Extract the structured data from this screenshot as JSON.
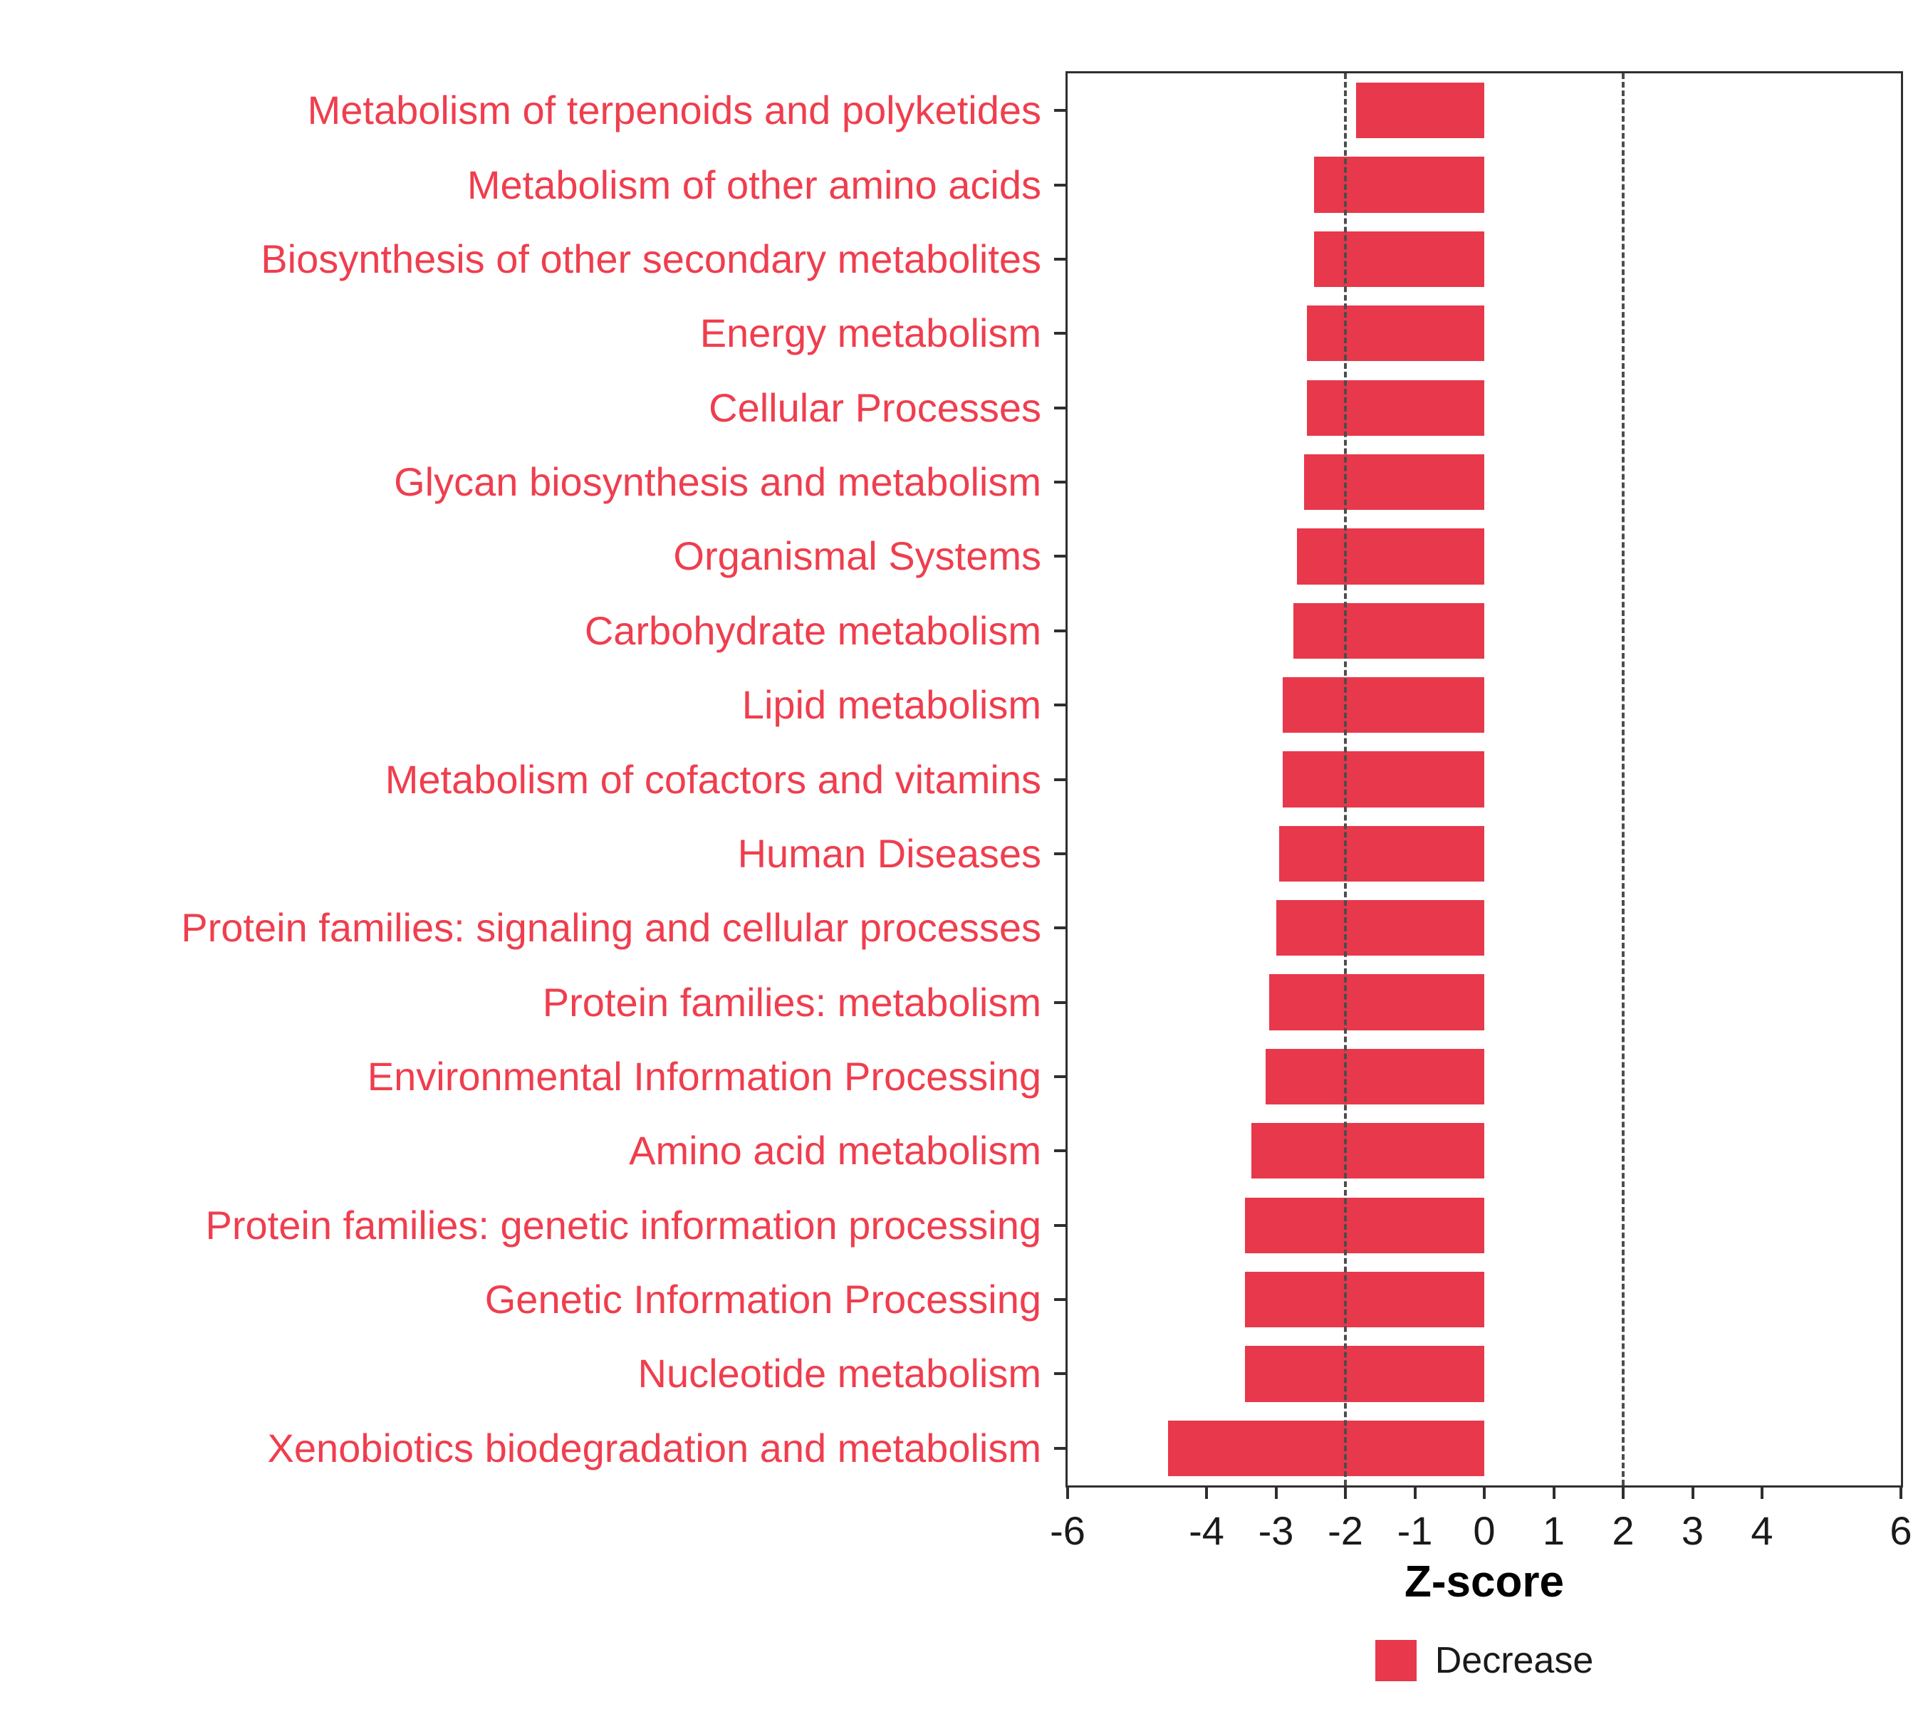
{
  "chart_data": {
    "type": "bar",
    "orientation": "horizontal",
    "title": "",
    "xlabel": "Z-score",
    "categories": [
      "Metabolism of terpenoids and polyketides",
      "Metabolism of other amino acids",
      "Biosynthesis of other secondary metabolites",
      "Energy metabolism",
      "Cellular Processes",
      "Glycan biosynthesis and metabolism",
      "Organismal Systems",
      "Carbohydrate metabolism",
      "Lipid metabolism",
      "Metabolism of cofactors and vitamins",
      "Human Diseases",
      "Protein families: signaling and cellular processes",
      "Protein families: metabolism",
      "Environmental Information Processing",
      "Amino acid metabolism",
      "Protein families: genetic information processing",
      "Genetic Information Processing",
      "Nucleotide metabolism",
      "Xenobiotics biodegradation and metabolism"
    ],
    "values": [
      -1.85,
      -2.45,
      -2.45,
      -2.55,
      -2.55,
      -2.6,
      -2.7,
      -2.75,
      -2.9,
      -2.9,
      -2.95,
      -3.0,
      -3.1,
      -3.15,
      -3.35,
      -3.45,
      -3.45,
      -3.45,
      -4.55
    ],
    "xlim": [
      -6,
      6
    ],
    "x_ticks": [
      {
        "value": -6,
        "label": "-6"
      },
      {
        "value": -4,
        "label": "-4"
      },
      {
        "value": -3,
        "label": "-3"
      },
      {
        "value": -2,
        "label": "-2"
      },
      {
        "value": -1,
        "label": "-1"
      },
      {
        "value": 0,
        "label": "0"
      },
      {
        "value": 1,
        "label": "1"
      },
      {
        "value": 2,
        "label": "2"
      },
      {
        "value": 3,
        "label": "3"
      },
      {
        "value": 4,
        "label": "4"
      },
      {
        "value": 6,
        "label": "6"
      }
    ],
    "reference_lines": [
      -2,
      2
    ],
    "grid": false,
    "bar_color": "#e8384b",
    "label_color": "#ef3e4e",
    "axis_text_color": "#1a1a1a",
    "reference_line_color": "#4d4d4d",
    "legend_position": "bottom",
    "legend": [
      {
        "label": "Decrease",
        "color": "#e8384b"
      }
    ]
  }
}
